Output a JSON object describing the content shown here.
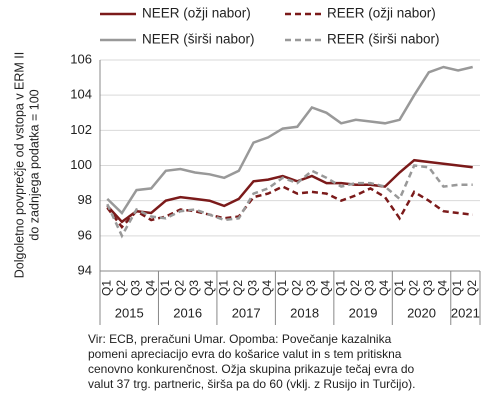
{
  "chart_data": {
    "type": "line",
    "ylabel": [
      "Dolgoletno povprečje od vstopa v ERM II",
      "do zadnjega podatka = 100"
    ],
    "categories": [
      "Q1",
      "Q2",
      "Q3",
      "Q4",
      "Q1",
      "Q2",
      "Q3",
      "Q4",
      "Q1",
      "Q2",
      "Q3",
      "Q4",
      "Q1",
      "Q2",
      "Q3",
      "Q4",
      "Q1",
      "Q2",
      "Q3",
      "Q4",
      "Q1",
      "Q2",
      "Q3",
      "Q4",
      "Q1",
      "Q2"
    ],
    "year_labels": [
      "2015",
      null,
      null,
      null,
      "2016",
      null,
      null,
      null,
      "2017",
      null,
      null,
      null,
      "2018",
      null,
      null,
      null,
      "2019",
      null,
      null,
      null,
      "2020",
      null,
      null,
      null,
      "2021",
      null
    ],
    "series": [
      {
        "name": "NEER (ožji nabor)",
        "color": "#7b1a1a",
        "dashed": false,
        "values": [
          97.7,
          96.8,
          97.4,
          97.3,
          98.0,
          98.2,
          98.1,
          98.0,
          97.7,
          98.1,
          99.1,
          99.2,
          99.4,
          99.1,
          99.4,
          99.0,
          99.0,
          98.9,
          98.9,
          98.8,
          99.6,
          100.3,
          100.2,
          100.1,
          100.0,
          99.9
        ]
      },
      {
        "name": "REER (ožji nabor)",
        "color": "#7b1a1a",
        "dashed": true,
        "values": [
          97.6,
          96.5,
          97.4,
          96.9,
          97.1,
          97.5,
          97.4,
          97.2,
          97.0,
          97.1,
          98.2,
          98.4,
          98.8,
          98.4,
          98.5,
          98.4,
          98.0,
          98.3,
          98.7,
          98.2,
          97.0,
          98.5,
          98.0,
          97.4,
          97.3,
          97.2
        ]
      },
      {
        "name": "NEER (širši nabor)",
        "color": "#999999",
        "dashed": false,
        "values": [
          98.1,
          97.3,
          98.6,
          98.7,
          99.7,
          99.8,
          99.6,
          99.5,
          99.3,
          99.7,
          101.3,
          101.6,
          102.1,
          102.2,
          103.3,
          103.0,
          102.4,
          102.6,
          102.5,
          102.4,
          102.6,
          104.0,
          105.3,
          105.6,
          105.4,
          105.6
        ]
      },
      {
        "name": "REER (širši nabor)",
        "color": "#999999",
        "dashed": true,
        "values": [
          97.8,
          96.0,
          97.5,
          97.1,
          97.0,
          97.4,
          97.5,
          97.2,
          96.9,
          97.0,
          98.4,
          98.7,
          99.3,
          99.0,
          99.7,
          99.3,
          98.8,
          99.0,
          99.0,
          98.8,
          98.1,
          100.0,
          99.9,
          98.8,
          98.9,
          98.9
        ]
      }
    ],
    "ylim": [
      94,
      106
    ],
    "yticks": [
      94,
      96,
      98,
      100,
      102,
      104,
      106
    ],
    "grid": true,
    "note": [
      "Vir: ECB, preračuni Umar. Opomba: Povečanje kazalnika",
      "pomeni apreciacijo evra do košarice valut in s tem pritiskna",
      "cenovno konkurenčnost. Ožja skupina prikazuje tečaj evra do",
      "valut 37 trg. partneric, širša pa do 60 (vklj. z Rusijo in Turčijo)."
    ]
  }
}
